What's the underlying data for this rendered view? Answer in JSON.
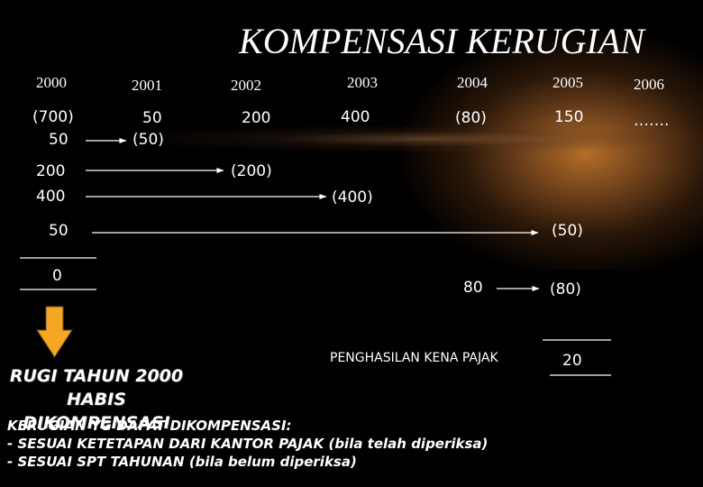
{
  "title": "KOMPENSASI KERUGIAN",
  "years": [
    "2000",
    "2001",
    "2002",
    "2003",
    "2004",
    "2005",
    "2006"
  ],
  "row1": {
    "v2000": "(700)",
    "v2001": "50",
    "v2002": "200",
    "v2003": "400",
    "v2004": "(80)",
    "v2005": "150",
    "v2006": "……."
  },
  "rows": {
    "comp_from_2001": "50",
    "comp_to_2001": "(50)",
    "comp_from_2002": "200",
    "comp_to_2002": "(200)",
    "comp_from_2003": "400",
    "comp_to_2003": "(400)",
    "comp_from_2005": "50",
    "comp_to_2005": "(50)",
    "remaining": "0",
    "loss_2004": "80",
    "loss_2004_comp": "(80)"
  },
  "taxable_label": "PENGHASILAN KENA PAJAK",
  "taxable_value": "20",
  "conclusion": [
    "RUGI TAHUN 2000",
    "HABIS DIKOMPENSASI"
  ],
  "note": {
    "heading": "KERUGIAN YG DAPAT DIKOMPENSASI:",
    "items": [
      "- SESUAI KETETAPAN DARI KANTOR PAJAK (bila telah diperiksa)",
      "- SESUAI SPT TAHUNAN (bila belum diperiksa)"
    ]
  },
  "colors": {
    "background": "#000000",
    "text": "#ffffff",
    "arrow_fill": "#f5a623",
    "glow": "#b46e28"
  }
}
